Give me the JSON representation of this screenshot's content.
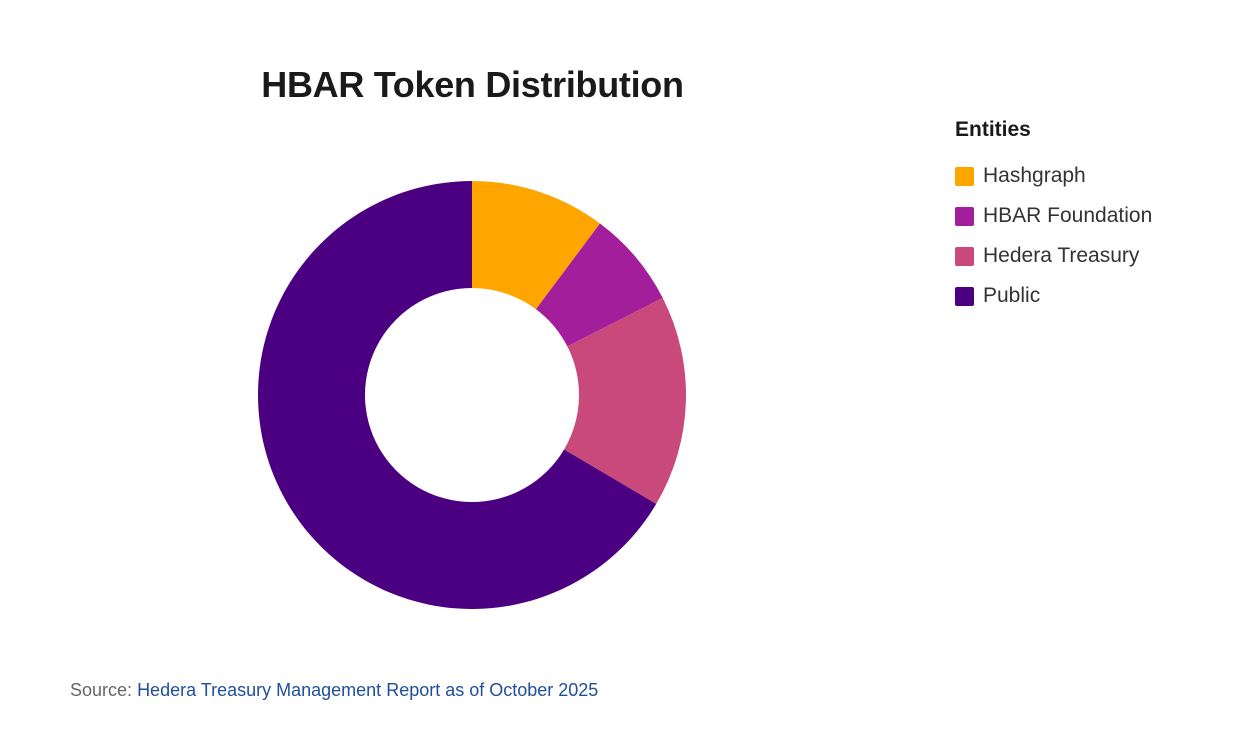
{
  "chart_data": {
    "type": "pie",
    "title": "HBAR Token Distribution",
    "legend_title": "Entities",
    "legend_position": "right",
    "categories": [
      "Hashgraph",
      "HBAR Foundation",
      "Hedera Treasury",
      "Public"
    ],
    "values": [
      10.2,
      7.3,
      16.0,
      66.5
    ],
    "colors": [
      "#FFA500",
      "#A21E9A",
      "#C8497A",
      "#4A0080"
    ],
    "inner_radius_ratio": 0.5
  },
  "source": {
    "prefix": "Source:",
    "link_text": "Hedera Treasury Management Report as of October 2025"
  }
}
